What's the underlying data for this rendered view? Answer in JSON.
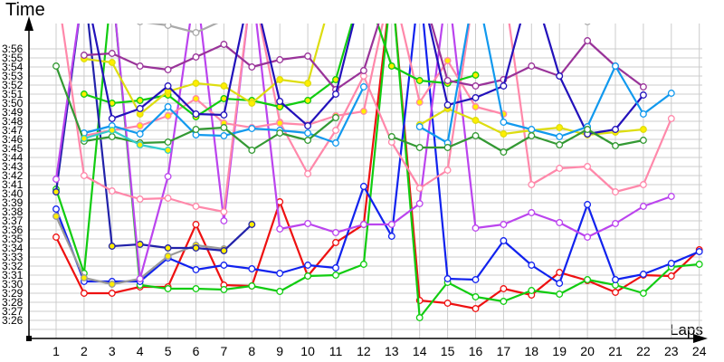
{
  "chart_data": {
    "type": "line",
    "title": "",
    "ylabel": "Time",
    "xlabel": "Laps",
    "x": [
      1,
      2,
      3,
      4,
      5,
      6,
      7,
      8,
      9,
      10,
      11,
      12,
      13,
      14,
      15,
      16,
      17,
      18,
      19,
      20,
      21,
      22,
      23,
      24
    ],
    "y_ticks": [
      "3:26",
      "3:27",
      "3:28",
      "3:29",
      "3:30",
      "3:31",
      "3:32",
      "3:33",
      "3:34",
      "3:35",
      "3:36",
      "3:37",
      "3:38",
      "3:39",
      "3:40",
      "3:41",
      "3:42",
      "3:43",
      "3:44",
      "3:45",
      "3:46",
      "3:47",
      "3:48",
      "3:49",
      "3:50",
      "3:51",
      "3:52",
      "3:53",
      "3:54",
      "3:55",
      "3:56"
    ],
    "ylim_seconds": [
      206,
      236
    ],
    "grid": true,
    "legend": "none",
    "note": "values in seconds past 3:00 (e.g. 35.0 = 3:35.0); null = off-chart/not shown; values > 238 are clipped above plot",
    "series": [
      {
        "name": "red",
        "color": "#ee1111",
        "fill": "#ffffff",
        "values": [
          35.2,
          29.0,
          29.0,
          29.7,
          29.7,
          36.6,
          29.9,
          29.8,
          39.1,
          30.9,
          34.6,
          36.6,
          260,
          28.2,
          27.9,
          27.3,
          29.5,
          28.8,
          31.3,
          30.4,
          29.1,
          31.0,
          30.9,
          33.8
        ]
      },
      {
        "name": "green",
        "color": "#11cc11",
        "fill": "#ffffff",
        "values": [
          40.5,
          31.2,
          260,
          29.9,
          29.5,
          29.5,
          29.4,
          29.8,
          29.2,
          30.9,
          31.0,
          32.2,
          260,
          26.3,
          30.2,
          28.6,
          28.1,
          29.3,
          28.9,
          30.5,
          29.9,
          29.0,
          31.9,
          32.2
        ]
      },
      {
        "name": "blue",
        "color": "#1122ee",
        "fill": "#ffffff",
        "values": [
          38.3,
          30.3,
          30.3,
          30.3,
          32.9,
          31.6,
          32.1,
          31.7,
          31.2,
          32.1,
          31.8,
          40.8,
          35.3,
          260,
          30.6,
          30.5,
          34.8,
          32.1,
          30.1,
          38.8,
          30.5,
          31.1,
          32.3,
          33.6
        ]
      },
      {
        "name": "grey",
        "color": "#999999",
        "fill": "#ffee00",
        "values": [
          37.5,
          30.7,
          30.0,
          30.6,
          33.1,
          34.3,
          33.9,
          null,
          null,
          null,
          null,
          null,
          null,
          null,
          null,
          null,
          null,
          null,
          null,
          null,
          null,
          null,
          null,
          null
        ]
      },
      {
        "name": "navy",
        "color": "#2222aa",
        "fill": "#ffee00",
        "values": [
          40.2,
          260,
          34.2,
          34.4,
          34.0,
          34.0,
          33.7,
          36.6,
          null,
          null,
          null,
          null,
          null,
          null,
          null,
          null,
          null,
          null,
          null,
          null,
          null,
          null,
          null,
          null
        ]
      },
      {
        "name": "violet",
        "color": "#bb44ee",
        "fill": "#ffffff",
        "values": [
          41.6,
          260,
          260,
          30.6,
          41.9,
          260,
          37.0,
          260,
          36.1,
          36.7,
          35.7,
          36.6,
          36.6,
          38.9,
          260,
          36.2,
          36.6,
          37.9,
          36.8,
          35.2,
          36.7,
          38.6,
          39.7,
          null
        ]
      },
      {
        "name": "pink",
        "color": "#ff88aa",
        "fill": "#ffffff",
        "values": [
          260,
          42.0,
          40.3,
          39.4,
          39.5,
          38.6,
          38.0,
          260,
          47.9,
          42.2,
          47.0,
          53.0,
          45.7,
          40.6,
          42.6,
          260,
          260,
          41.0,
          42.8,
          43.0,
          40.2,
          41.0,
          48.3,
          null
        ]
      },
      {
        "name": "pink-yellow",
        "color": "#ff88aa",
        "fill": "#ffee00",
        "values": [
          null,
          46.4,
          47.0,
          47.5,
          48.6,
          50.5,
          47.8,
          47.3,
          47.8,
          47.6,
          48.6,
          49.1,
          260,
          50.1,
          54.7,
          49.6,
          48.8,
          null,
          null,
          null,
          null,
          null,
          null,
          null
        ]
      },
      {
        "name": "lime-green",
        "color": "#11cc11",
        "fill": "#ffee00",
        "values": [
          null,
          51.0,
          50.0,
          50.3,
          50.9,
          48.5,
          50.5,
          50.3,
          49.6,
          50.3,
          52.6,
          260,
          54.1,
          52.5,
          52.2,
          53.1,
          null,
          null,
          null,
          null,
          null,
          null,
          null,
          null
        ]
      },
      {
        "name": "yellow",
        "color": "#dddd11",
        "fill": "#ffee00",
        "values": [
          null,
          54.9,
          54.5,
          48.8,
          51.3,
          52.2,
          51.9,
          50.0,
          52.6,
          52.2,
          260,
          null,
          null,
          47.6,
          49.4,
          48.1,
          46.6,
          47.0,
          47.3,
          46.5,
          46.8,
          47.1,
          null,
          null
        ]
      },
      {
        "name": "purple",
        "color": "#993399",
        "fill": "#ffffff",
        "values": [
          null,
          55.3,
          55.5,
          54.1,
          53.7,
          55.1,
          56.5,
          54.0,
          54.8,
          55.2,
          51.5,
          53.6,
          260,
          260,
          52.5,
          51.9,
          52.6,
          54.1,
          53.0,
          56.9,
          54.1,
          51.8,
          null,
          null
        ]
      },
      {
        "name": "darkblue",
        "color": "#2211bb",
        "fill": "#ffffff",
        "values": [
          null,
          260,
          48.3,
          49.4,
          51.9,
          48.8,
          48.7,
          260,
          50.2,
          47.5,
          51.0,
          260,
          null,
          260,
          49.8,
          50.6,
          51.9,
          260,
          53.0,
          46.6,
          47.1,
          50.9,
          null,
          null
        ]
      },
      {
        "name": "skyblue",
        "color": "#1199ee",
        "fill": "#ffffff",
        "values": [
          null,
          46.7,
          47.5,
          46.6,
          49.6,
          46.5,
          46.4,
          47.2,
          47.0,
          46.7,
          45.6,
          51.8,
          null,
          47.4,
          45.6,
          260,
          47.9,
          47.1,
          46.3,
          47.4,
          54.1,
          48.8,
          51.1,
          null
        ]
      },
      {
        "name": "darkgreen",
        "color": "#339933",
        "fill": "#ffffff",
        "values": [
          54.1,
          45.8,
          46.3,
          45.6,
          45.7,
          47.1,
          47.3,
          44.8,
          46.7,
          45.9,
          48.4,
          null,
          46.3,
          45.1,
          45.1,
          46.4,
          44.6,
          46.4,
          45.4,
          47.1,
          45.3,
          45.9,
          null,
          null
        ]
      },
      {
        "name": "teal",
        "color": "#33cccc",
        "fill": "#ffee00",
        "values": [
          null,
          46.1,
          47.0,
          45.4,
          44.8,
          null,
          null,
          null,
          null,
          null,
          null,
          null,
          null,
          null,
          null,
          null,
          null,
          null,
          null,
          null,
          null,
          null,
          null,
          null
        ]
      },
      {
        "name": "lightgrey",
        "color": "#aaaaaa",
        "fill": "#ffffff",
        "values": [
          null,
          260,
          260,
          59.0,
          58.6,
          57.8,
          59.2,
          260,
          null,
          null,
          null,
          60.0,
          null,
          60.5,
          null,
          null,
          null,
          null,
          null,
          59.0,
          null,
          null,
          null,
          null
        ]
      }
    ]
  },
  "axes": {
    "y_title": "Time",
    "x_title": "Laps"
  }
}
